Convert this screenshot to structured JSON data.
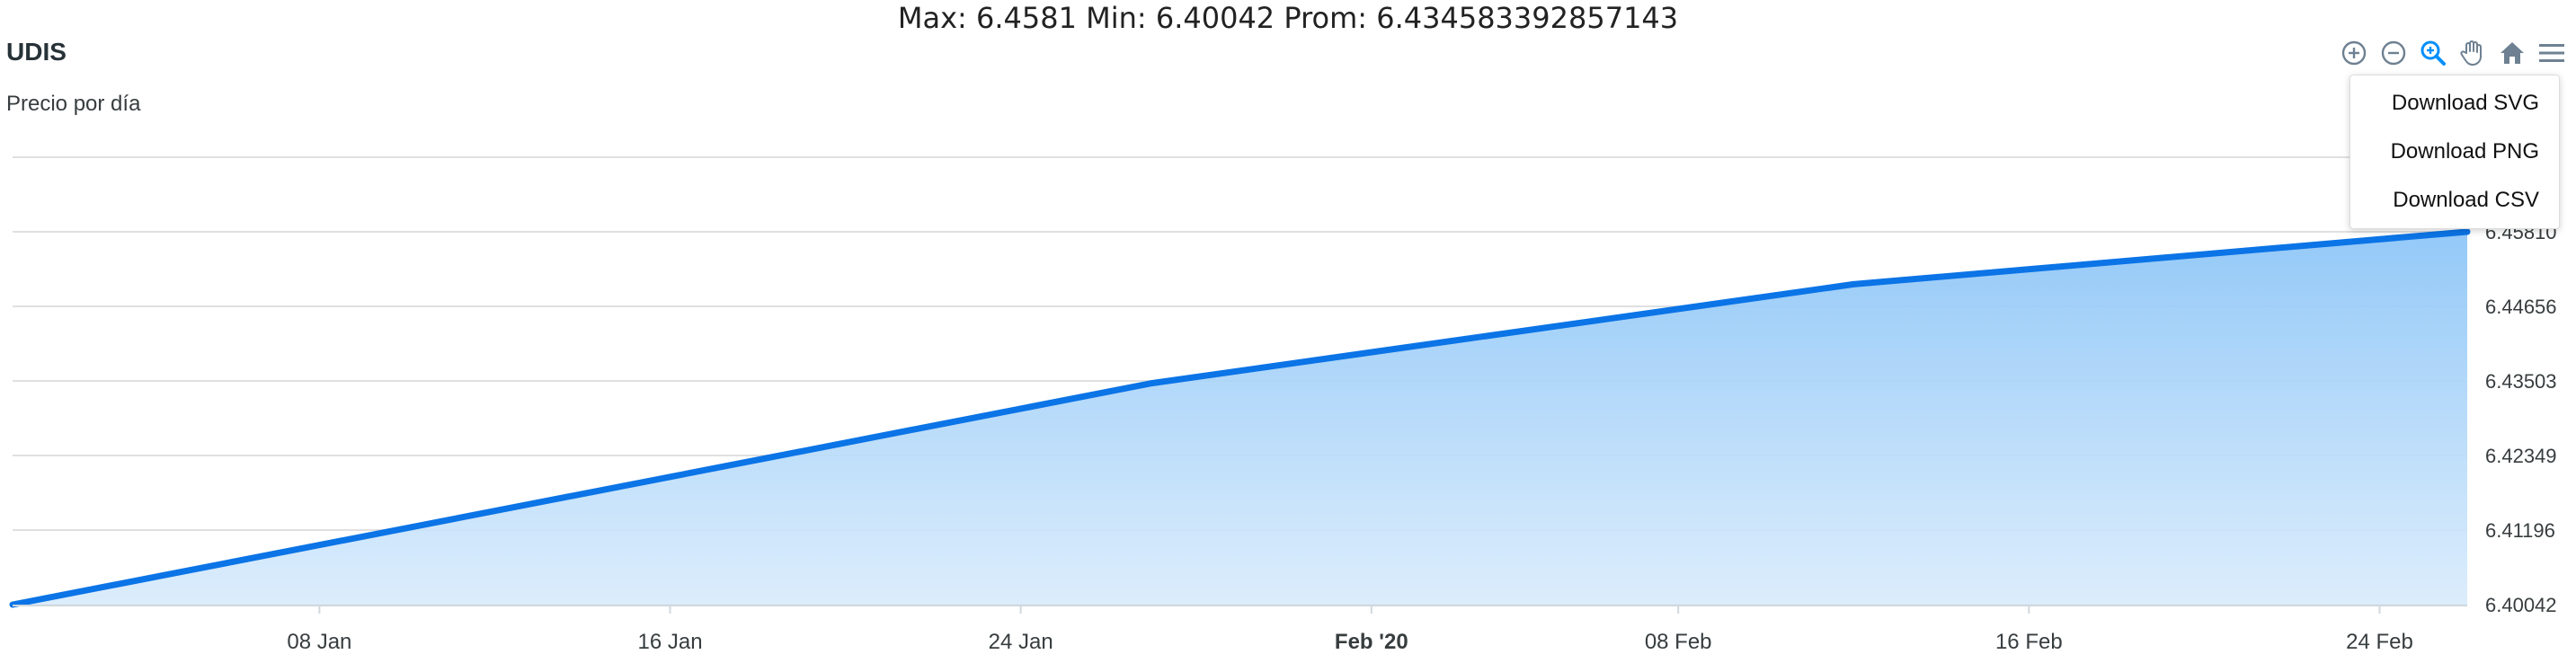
{
  "header": {
    "stats": "Max: 6.4581 Min: 6.40042 Prom: 6.434583392857143"
  },
  "chart_data": {
    "type": "area",
    "title": "UDIS",
    "subtitle": "Precio por día",
    "x": [
      "2020-01-01",
      "2020-01-27",
      "2020-02-12",
      "2020-02-26"
    ],
    "series": [
      {
        "values": [
          6.40042,
          6.43468,
          6.44998,
          6.4581
        ]
      }
    ],
    "x_ticks": [
      {
        "date": "2020-01-08",
        "label": "08 Jan"
      },
      {
        "date": "2020-01-16",
        "label": "16 Jan"
      },
      {
        "date": "2020-01-24",
        "label": "24 Jan"
      },
      {
        "date": "2020-02-01",
        "label": "Feb '20",
        "bold": true
      },
      {
        "date": "2020-02-08",
        "label": "08 Feb"
      },
      {
        "date": "2020-02-16",
        "label": "16 Feb"
      },
      {
        "date": "2020-02-24",
        "label": "24 Feb"
      }
    ],
    "xlim": [
      "2020-01-01",
      "2020-02-26"
    ],
    "y_ticks": [
      "6.40042",
      "6.41196",
      "6.42349",
      "6.43503",
      "6.44656",
      "6.45810",
      "6.46963"
    ],
    "ylim": [
      6.40042,
      6.46963
    ],
    "grid": true,
    "colors": {
      "line": "#0b74e6",
      "fill_top": "#8ec6f7",
      "fill_bottom": "#d8ebfc",
      "grid": "#e0e0e0"
    }
  },
  "toolbar": {
    "buttons": [
      {
        "icon": "zoom-in-icon"
      },
      {
        "icon": "zoom-out-icon"
      },
      {
        "icon": "zoom-selection-icon",
        "active": true
      },
      {
        "icon": "pan-hand-icon"
      },
      {
        "icon": "home-reset-icon"
      },
      {
        "icon": "menu-hamburger-icon"
      }
    ]
  },
  "menu": {
    "items": [
      {
        "label": "Download SVG"
      },
      {
        "label": "Download PNG"
      },
      {
        "label": "Download CSV"
      }
    ]
  }
}
